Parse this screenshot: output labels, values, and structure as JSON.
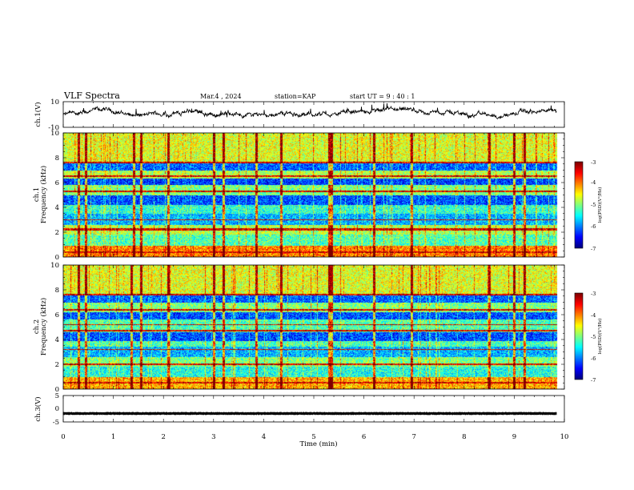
{
  "header": {
    "title": "VLF Spectra",
    "date": "Mar.4 , 2024",
    "station": "station=KAP",
    "start": "start  UT =   9 : 40 : 1"
  },
  "chart_data": [
    {
      "type": "line",
      "panel": "ch1-waveform",
      "ylabel": "ch.1(V)",
      "ylim": [
        -10,
        10
      ],
      "y_ticks": [
        "10",
        "-10"
      ],
      "xlim": [
        0,
        10
      ],
      "color": "#000000",
      "x_end_min": 9.85,
      "description_values": {
        "mean": 0.6,
        "amplitude": 2.5
      }
    },
    {
      "type": "heatmap",
      "panel": "ch1-spectrogram",
      "ylabel": "ch.1\nFrequency (kHz)",
      "ylabel_lines": [
        "ch.1",
        "Frequency (kHz)"
      ],
      "ylim": [
        0,
        10
      ],
      "y_ticks": [
        "0",
        "2",
        "4",
        "6",
        "8",
        "10"
      ],
      "xlim": [
        0,
        10
      ],
      "x_end_min": 9.85,
      "colorbar": {
        "label": "log(PSD)(V²/Hz)",
        "range": [
          -7,
          -3
        ],
        "ticks": [
          "-3",
          "-4",
          "-5",
          "-6",
          "-7"
        ]
      },
      "bands_khz": [
        {
          "lo": 0,
          "hi": 0.9,
          "level": 0.75
        },
        {
          "lo": 0.9,
          "hi": 1.8,
          "level": 0.45
        },
        {
          "lo": 1.8,
          "hi": 2.6,
          "level": 0.55
        },
        {
          "lo": 2.6,
          "hi": 3.5,
          "level": 0.3
        },
        {
          "lo": 3.5,
          "hi": 4.2,
          "level": 0.42
        },
        {
          "lo": 4.2,
          "hi": 5.0,
          "level": 0.2
        },
        {
          "lo": 5.0,
          "hi": 5.8,
          "level": 0.5
        },
        {
          "lo": 5.8,
          "hi": 6.3,
          "level": 0.18
        },
        {
          "lo": 6.3,
          "hi": 7.0,
          "level": 0.55
        },
        {
          "lo": 7.0,
          "hi": 7.6,
          "level": 0.22
        },
        {
          "lo": 7.6,
          "hi": 10.0,
          "level": 0.6
        }
      ],
      "lines_khz": [
        0.4,
        2.2,
        2.3,
        3.0,
        5.3,
        6.5,
        7.6
      ],
      "bursts_min": [
        0.3,
        0.45,
        1.4,
        1.55,
        2.1,
        3.0,
        3.2,
        3.85,
        4.35,
        5.3,
        5.35,
        6.2,
        6.95,
        8.5,
        9.0,
        9.2
      ]
    },
    {
      "type": "heatmap",
      "panel": "ch2-spectrogram",
      "ylabel": "ch.2\nFrequency (kHz)",
      "ylabel_lines": [
        "ch.2",
        "Frequency (kHz)"
      ],
      "ylim": [
        0,
        10
      ],
      "y_ticks": [
        "0",
        "2",
        "4",
        "6",
        "8",
        "10"
      ],
      "xlim": [
        0,
        10
      ],
      "x_end_min": 9.85,
      "colorbar": {
        "label": "log(PSD)(V²/Hz)",
        "range": [
          -7,
          -3
        ],
        "ticks": [
          "-3",
          "-4",
          "-5",
          "-6",
          "-7"
        ]
      },
      "bands_khz": [
        {
          "lo": 0,
          "hi": 1.0,
          "level": 0.7
        },
        {
          "lo": 1.0,
          "hi": 1.8,
          "level": 0.4
        },
        {
          "lo": 1.8,
          "hi": 2.6,
          "level": 0.5
        },
        {
          "lo": 2.6,
          "hi": 3.4,
          "level": 0.3
        },
        {
          "lo": 3.4,
          "hi": 3.9,
          "level": 0.45
        },
        {
          "lo": 3.9,
          "hi": 4.6,
          "level": 0.2
        },
        {
          "lo": 4.6,
          "hi": 5.6,
          "level": 0.45
        },
        {
          "lo": 5.6,
          "hi": 6.2,
          "level": 0.2
        },
        {
          "lo": 6.2,
          "hi": 7.0,
          "level": 0.5
        },
        {
          "lo": 7.0,
          "hi": 7.6,
          "level": 0.22
        },
        {
          "lo": 7.6,
          "hi": 10.0,
          "level": 0.6
        }
      ],
      "lines_khz": [
        0.5,
        2.0,
        3.2,
        4.7,
        5.2,
        6.4,
        7.6
      ],
      "bursts_min": [
        0.3,
        0.45,
        1.35,
        1.55,
        2.1,
        3.0,
        3.2,
        3.85,
        4.35,
        5.3,
        5.35,
        6.2,
        6.95,
        8.5,
        9.0,
        9.2
      ]
    },
    {
      "type": "line",
      "panel": "ch3-waveform",
      "ylabel": "ch.3(V)",
      "ylim": [
        -5,
        5
      ],
      "y_ticks": [
        "5",
        "0",
        "-5"
      ],
      "xlim": [
        0,
        10
      ],
      "x_end_min": 9.85,
      "color": "#000000",
      "description_values": {
        "mean": -1.8,
        "amplitude": 0.5
      }
    }
  ],
  "xaxis": {
    "label": "Time (min)",
    "ticks": [
      "0",
      "1",
      "2",
      "3",
      "4",
      "5",
      "6",
      "7",
      "8",
      "9",
      "10"
    ]
  }
}
